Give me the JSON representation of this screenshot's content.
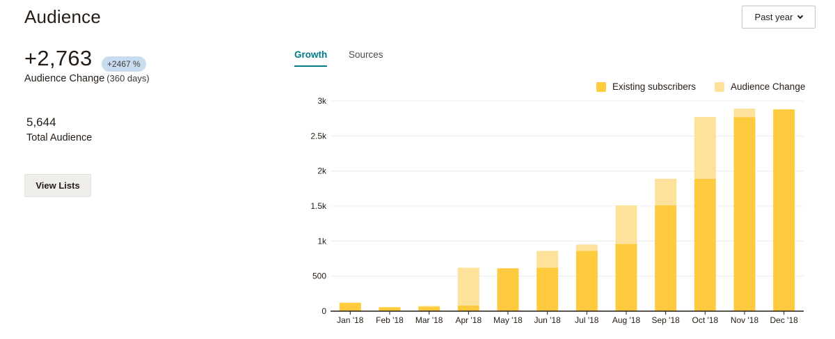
{
  "page": {
    "title": "Audience"
  },
  "range_select": {
    "label": "Past year",
    "icon": "chevron-down-icon"
  },
  "summary": {
    "change_value": "+2,763",
    "change_percent": "+2467 %",
    "change_label": "Audience Change",
    "change_period": "(360 days)",
    "total_value": "5,644",
    "total_label": "Total Audience"
  },
  "buttons": {
    "view_lists": "View Lists"
  },
  "tabs": [
    {
      "label": "Growth",
      "active": true
    },
    {
      "label": "Sources",
      "active": false
    }
  ],
  "colors": {
    "existing": "#fecb3f",
    "change": "#fee29b",
    "accent": "#007c89",
    "badge": "#c9dcef"
  },
  "chart_data": {
    "type": "bar",
    "stacked": true,
    "categories": [
      "Jan '18",
      "Feb '18",
      "Mar '18",
      "Apr '18",
      "May '18",
      "Jun '18",
      "Jul '18",
      "Aug '18",
      "Sep '18",
      "Oct '18",
      "Nov '18",
      "Dec '18"
    ],
    "series": [
      {
        "name": "Existing subscribers",
        "values": [
          120,
          55,
          65,
          80,
          610,
          620,
          860,
          960,
          1510,
          1890,
          2770,
          2880
        ]
      },
      {
        "name": "Audience Change",
        "values": [
          0,
          5,
          10,
          540,
          5,
          240,
          90,
          550,
          380,
          880,
          120,
          0
        ]
      }
    ],
    "ylim": [
      0,
      3000
    ],
    "yticks": [
      0,
      500,
      1000,
      1500,
      2000,
      2500,
      3000
    ],
    "ytick_labels": [
      "0",
      "500",
      "1k",
      "1.5k",
      "2k",
      "2.5k",
      "3k"
    ],
    "xlabel": "",
    "ylabel": "",
    "grid": true,
    "legend": "top-right"
  }
}
